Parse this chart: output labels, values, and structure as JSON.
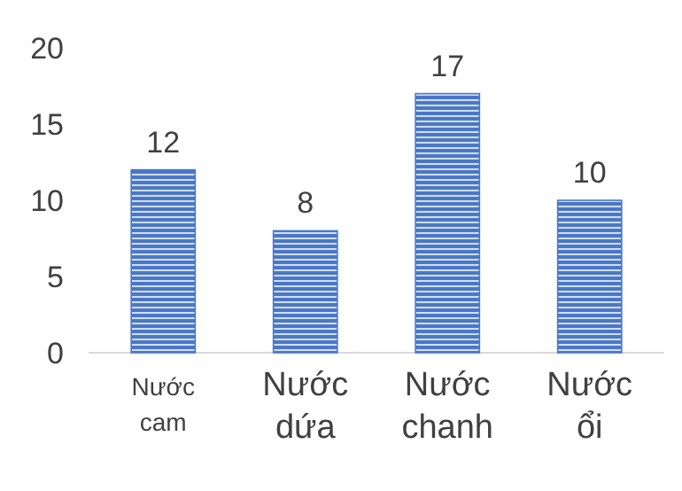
{
  "chart_data": {
    "type": "bar",
    "categories": [
      "Nước cam",
      "Nước dứa",
      "Nước chanh",
      "Nước ổi"
    ],
    "values": [
      12,
      8,
      17,
      10
    ],
    "color": "#4a78c8",
    "ylim": [
      0,
      20
    ],
    "yticks": [
      0,
      5,
      10,
      15,
      20
    ],
    "grid": false,
    "data_labels": true
  }
}
